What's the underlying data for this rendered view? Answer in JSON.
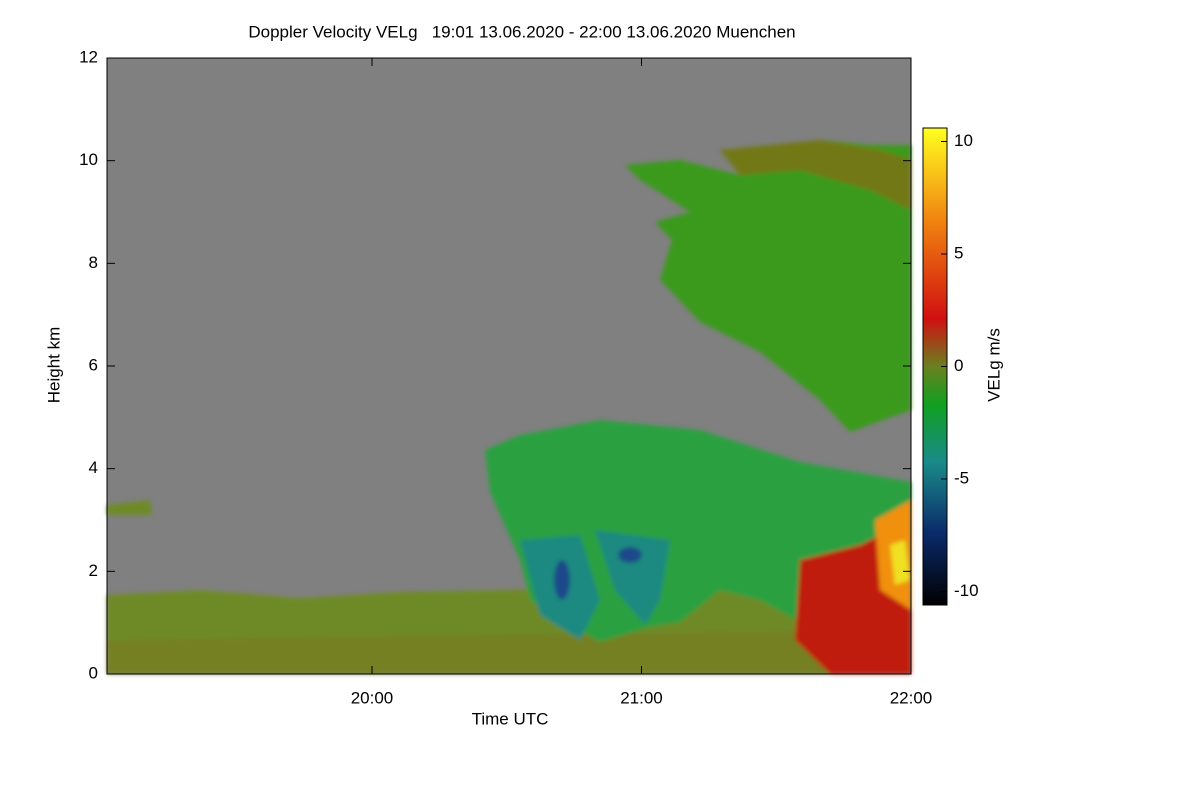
{
  "chart_data": {
    "type": "heatmap",
    "title": "Doppler Velocity VELg   19:01 13.06.2020 - 22:00 13.06.2020 Muenchen",
    "x_label": "Time UTC",
    "y_label": "Height km",
    "colorbar_label": "VELg m/s",
    "xlim": [
      19.0167,
      22
    ],
    "xticks": [
      {
        "value": 20,
        "label": "20:00"
      },
      {
        "value": 21,
        "label": "21:00"
      },
      {
        "value": 22,
        "label": "22:00"
      }
    ],
    "ylim": [
      0,
      12
    ],
    "yticks": [
      0,
      2,
      4,
      6,
      8,
      10,
      12
    ],
    "clim": [
      -10.6,
      10.6
    ],
    "cticks": [
      -10,
      -5,
      0,
      5,
      10
    ]
  }
}
